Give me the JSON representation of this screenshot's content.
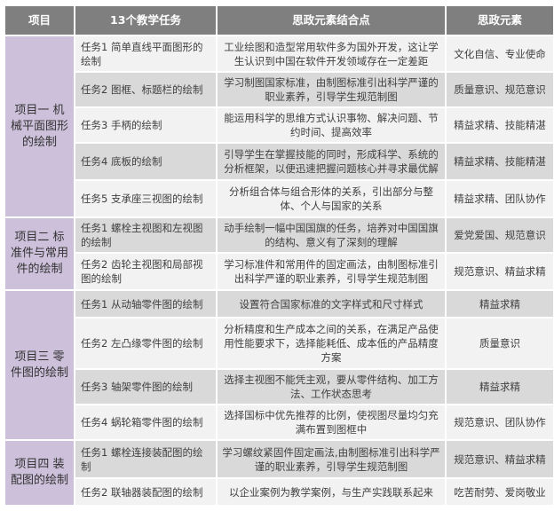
{
  "header": {
    "project": "项目",
    "tasks": "13个教学任务",
    "points": "思政元素结合点",
    "elements": "思政元素"
  },
  "projects": [
    {
      "name": "项目一 机械平面图形的绘制",
      "rows": [
        {
          "task": "任务1 简单直线平面图形的绘制",
          "point": "工业绘图和造型常用软件多为国外开发，这让学生认识到中国在软件开发领域存在一定差距",
          "element": "文化自信、专业使命"
        },
        {
          "task": "任务2 图框、标题栏的绘制",
          "point": "学习制图国家标准，由制图标准引出科学严谨的职业素养，引导学生规范制图",
          "element": "质量意识、规范意识"
        },
        {
          "task": "任务3 手柄的绘制",
          "point": "能运用科学的思维方式认识事物、解决问题、节约时间、提高效率",
          "element": "精益求精、技能精湛"
        },
        {
          "task": "任务4 底板的绘制",
          "point": "引导学生在掌握技能的同时，形成科学、系统的分析框架，以便迅速把握问题核心并寻求最优解",
          "element": "精益求精、技能精湛"
        },
        {
          "task": "任务5 支承座三视图的绘制",
          "point": "分析组合体与组合形体的关系，引出部分与整体、个人与国家的关系",
          "element": "精益求精、团队协作"
        }
      ]
    },
    {
      "name": "项目二 标准件与常用件的绘制",
      "rows": [
        {
          "task": "任务1 螺栓主视图和左视图的绘制",
          "point": "动手绘制一幅中国国旗的任务，培养对中国国旗的结构、意义有了深刻的理解",
          "element": "爱党爱国、规范意识"
        },
        {
          "task": "任务2 齿轮主视图和局部视图的绘制",
          "point": "学习标准件和常用件的固定画法，由制图标准引出科学严谨的职业素养，引导学生规范制图",
          "element": "规范意识、精益求精"
        }
      ]
    },
    {
      "name": "项目三 零件图的绘制",
      "rows": [
        {
          "task": "任务1 从动轴零件图的绘制",
          "point": "设置符合国家标准的文字样式和尺寸样式",
          "element": "精益求精"
        },
        {
          "task": "任务2 左凸缘零件图的绘制",
          "point": "分析精度和生产成本之间的关系，在满足产品使用性能要求下，选择能耗低、成本低的产品精度方案",
          "element": "质量意识"
        },
        {
          "task": "任务3 轴架零件图的绘制",
          "point": "选择主视图不能凭主观，要从零件结构、加工方法、工作状态思考",
          "element": "精益求精"
        },
        {
          "task": "任务4 蜗轮箱零件图的绘制",
          "point": "选择国标中优先推荐的比例，使视图尽量均匀充满布置到图框中",
          "element": "规范意识、团队协作"
        }
      ]
    },
    {
      "name": "项目四 装配图的绘制",
      "rows": [
        {
          "task": "任务1 螺栓连接装配图的绘制",
          "point": "学习螺纹紧固件固定画法,由制图标准引出科学严谨的职业素养，引导学生规范制图",
          "element": "规范意识、精益求精"
        },
        {
          "task": "任务2 联轴器装配图的绘制",
          "point": "以企业案例为教学案例，与生产实践联系起来",
          "element": "吃苦耐劳、爱岗敬业"
        }
      ]
    }
  ],
  "colors": {
    "header_bg": "#7f7f7f",
    "project_bg": "#ccc0da",
    "row_light": "#f2f2f2",
    "row_dark": "#d9d9d9"
  }
}
